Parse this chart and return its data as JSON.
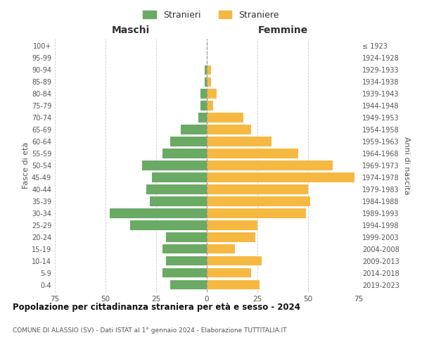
{
  "age_groups": [
    "0-4",
    "5-9",
    "10-14",
    "15-19",
    "20-24",
    "25-29",
    "30-34",
    "35-39",
    "40-44",
    "45-49",
    "50-54",
    "55-59",
    "60-64",
    "65-69",
    "70-74",
    "75-79",
    "80-84",
    "85-89",
    "90-94",
    "95-99",
    "100+"
  ],
  "birth_years": [
    "2019-2023",
    "2014-2018",
    "2009-2013",
    "2004-2008",
    "1999-2003",
    "1994-1998",
    "1989-1993",
    "1984-1988",
    "1979-1983",
    "1974-1978",
    "1969-1973",
    "1964-1968",
    "1959-1963",
    "1954-1958",
    "1949-1953",
    "1944-1948",
    "1939-1943",
    "1934-1938",
    "1929-1933",
    "1924-1928",
    "≤ 1923"
  ],
  "maschi": [
    18,
    22,
    20,
    22,
    20,
    38,
    48,
    28,
    30,
    27,
    32,
    22,
    18,
    13,
    4,
    3,
    3,
    1,
    1,
    0,
    0
  ],
  "femmine": [
    26,
    22,
    27,
    14,
    24,
    25,
    49,
    51,
    50,
    73,
    62,
    45,
    32,
    22,
    18,
    3,
    5,
    2,
    2,
    0,
    0
  ],
  "color_maschi": "#6aaa64",
  "color_femmine": "#f5b942",
  "title": "Popolazione per cittadinanza straniera per età e sesso - 2024",
  "subtitle": "COMUNE DI ALASSIO (SV) - Dati ISTAT al 1° gennaio 2024 - Elaborazione TUTTITALIA.IT",
  "ylabel_left": "Fasce di età",
  "ylabel_right": "Anni di nascita",
  "xlabel_left": "Maschi",
  "xlabel_right": "Femmine",
  "legend_maschi": "Stranieri",
  "legend_femmine": "Straniere",
  "xlim": 75,
  "background_color": "#ffffff",
  "grid_color": "#cccccc"
}
